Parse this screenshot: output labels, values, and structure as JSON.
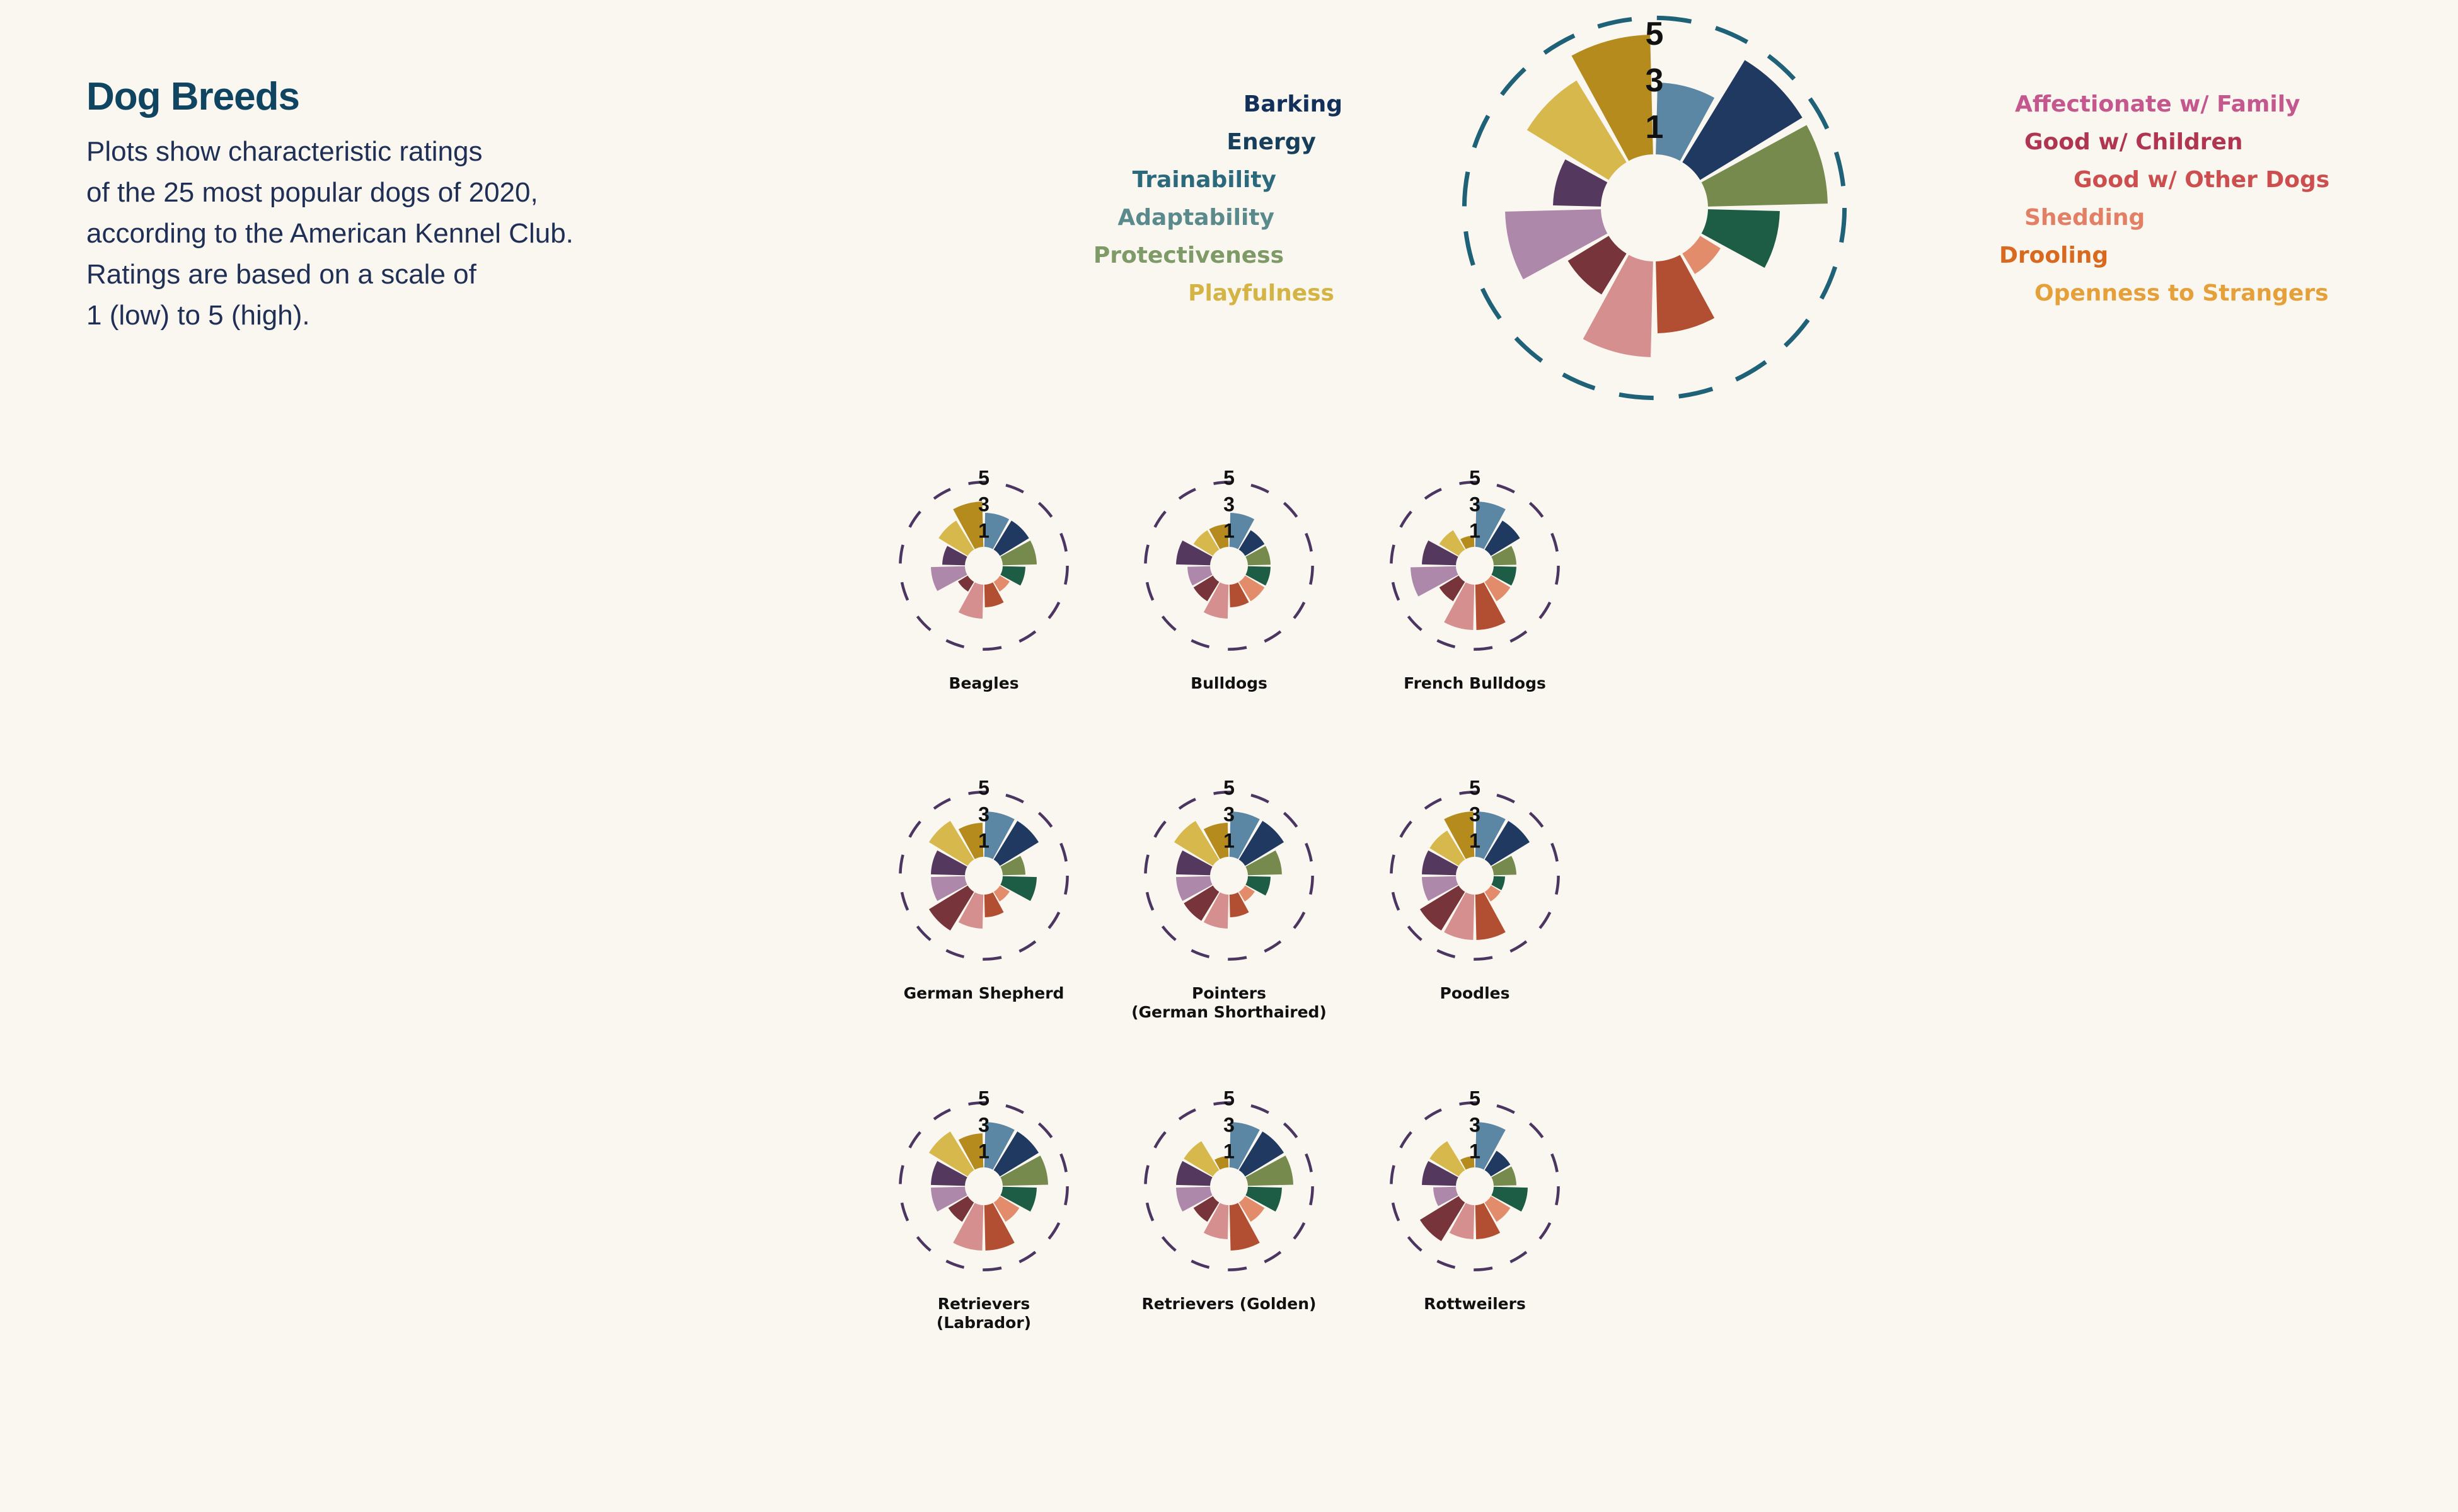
{
  "title": "Dog Breeds",
  "subtitle": [
    "Plots show characteristic ratings",
    "of the 25 most popular dogs of 2020,",
    "according to the American Kennel Club.",
    "Ratings are based on a scale of",
    "1 (low) to 5 (high)."
  ],
  "legend": {
    "left": [
      "Barking",
      "Energy",
      "Trainability",
      "Adaptability",
      "Protectiveness",
      "Playfulness"
    ],
    "right": [
      "Affectionate w/ Family",
      "Good w/ Children",
      "Good w/ Other Dogs",
      "Shedding",
      "Drooling",
      "Openness to Strangers"
    ]
  },
  "chart_data": {
    "type": "radial-bar",
    "scale_labels": [
      "5",
      "3",
      "1"
    ],
    "categories": [
      "Affectionate w/ Family",
      "Good w/ Children",
      "Good w/ Other Dogs",
      "Shedding",
      "Drooling",
      "Openness to Strangers",
      "Playfulness",
      "Protectiveness",
      "Adaptability",
      "Trainability",
      "Energy",
      "Barking"
    ],
    "colors": [
      "#5b86a4",
      "#1f3961",
      "#768a4d",
      "#1d5c45",
      "#e28c6c",
      "#b24f32",
      "#d48f8e",
      "#77343a",
      "#ad88aa",
      "#55385e",
      "#d6b84c",
      "#b48b1c"
    ],
    "ring_color_key": "#1f6278",
    "ring_color_small": "#4a3660",
    "key_chart": {
      "values": [
        3,
        5,
        5,
        3,
        1,
        3,
        4,
        2,
        4,
        2,
        4,
        5
      ]
    },
    "breeds": [
      {
        "name": [
          "Beagles"
        ],
        "values": [
          3,
          3,
          3,
          2,
          1,
          2,
          3,
          1,
          3,
          2,
          3,
          4
        ]
      },
      {
        "name": [
          "Bulldogs"
        ],
        "values": [
          3,
          2,
          2,
          2,
          2,
          2,
          3,
          2,
          2,
          3,
          2,
          2
        ]
      },
      {
        "name": [
          "French Bulldogs"
        ],
        "values": [
          4,
          3,
          2,
          2,
          2,
          4,
          4,
          2,
          4,
          3,
          2,
          1
        ]
      },
      {
        "name": [
          "German Shepherd"
        ],
        "values": [
          4,
          4,
          2,
          3,
          1,
          2,
          3,
          4,
          3,
          3,
          4,
          3
        ]
      },
      {
        "name": [
          "Pointers",
          "(German Shorthaired)"
        ],
        "values": [
          4,
          4,
          3,
          2,
          1,
          2,
          3,
          3,
          3,
          3,
          4,
          3
        ]
      },
      {
        "name": [
          "Poodles"
        ],
        "values": [
          4,
          4,
          2,
          1,
          1,
          4,
          4,
          4,
          3,
          3,
          3,
          4
        ]
      },
      {
        "name": [
          "Retrievers",
          "(Labrador)"
        ],
        "values": [
          4,
          4,
          4,
          3,
          2,
          4,
          4,
          2,
          3,
          3,
          4,
          3
        ]
      },
      {
        "name": [
          "Retrievers (Golden)"
        ],
        "values": [
          4,
          4,
          4,
          3,
          2,
          4,
          3,
          2,
          3,
          3,
          3,
          1
        ]
      },
      {
        "name": [
          "Rottweilers"
        ],
        "values": [
          4,
          2,
          2,
          3,
          2,
          3,
          3,
          4,
          2,
          3,
          3,
          1
        ]
      }
    ]
  }
}
